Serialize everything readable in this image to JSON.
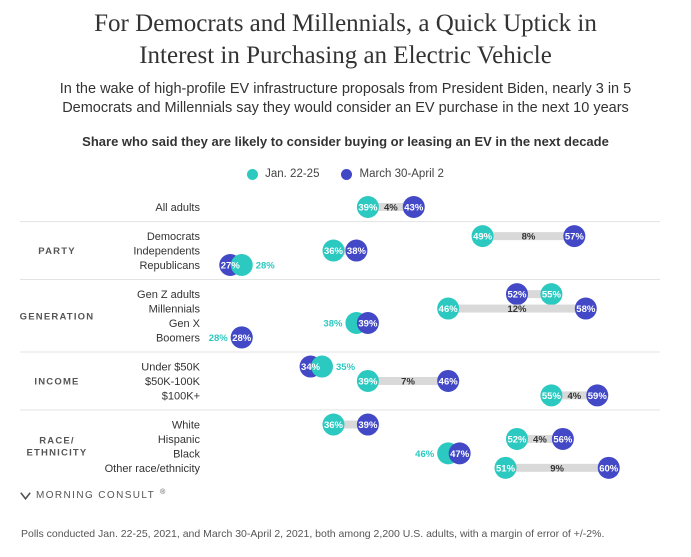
{
  "chart_data": {
    "type": "dumbbell",
    "title_lines": [
      "For Democrats and Millennials, a Quick Uptick in",
      "Interest in Purchasing an Electric Vehicle"
    ],
    "subtitle_lines": [
      "In the wake of high-profile EV infrastructure proposals from President Biden, nearly 3 in 5",
      "Democrats and Millennials say they would consider an EV purchase in the next 10 years"
    ],
    "chart_heading": "Share who said they are likely to consider buying or leasing an EV in the next decade",
    "legend": [
      {
        "name": "Jan. 22-25",
        "color": "#2cc9c0"
      },
      {
        "name": "March 30-April 2",
        "color": "#4248c6"
      }
    ],
    "x_range": [
      25,
      61
    ],
    "groups": [
      {
        "label": "",
        "rows": [
          {
            "label": "All adults",
            "jan": 39,
            "mar": 43,
            "jan_label": "39%",
            "mar_label": "43%",
            "diff_label": "4%"
          }
        ]
      },
      {
        "label": "PARTY",
        "rows": [
          {
            "label": "Democrats",
            "jan": 49,
            "mar": 57,
            "jan_label": "49%",
            "mar_label": "57%",
            "diff_label": "8%"
          },
          {
            "label": "Independents",
            "jan": 36,
            "mar": 38,
            "jan_label": "36%",
            "mar_label": "38%",
            "diff_label": ""
          },
          {
            "label": "Republicans",
            "jan": 28,
            "mar": 27,
            "jan_label": "28%",
            "mar_label": "27%",
            "diff_label": ""
          }
        ]
      },
      {
        "label": "GENERATION",
        "rows": [
          {
            "label": "Gen Z adults",
            "jan": 55,
            "mar": 52,
            "jan_label": "55%",
            "mar_label": "52%",
            "diff_label": ""
          },
          {
            "label": "Millennials",
            "jan": 46,
            "mar": 58,
            "jan_label": "46%",
            "mar_label": "58%",
            "diff_label": "12%"
          },
          {
            "label": "Gen X",
            "jan": 38,
            "mar": 39,
            "jan_label": "38%",
            "mar_label": "39%",
            "diff_label": ""
          },
          {
            "label": "Boomers",
            "jan": 28,
            "mar": 28,
            "jan_label": "28%",
            "mar_label": "28%",
            "diff_label": ""
          }
        ]
      },
      {
        "label": "INCOME",
        "rows": [
          {
            "label": "Under $50K",
            "jan": 35,
            "mar": 34,
            "jan_label": "35%",
            "mar_label": "34%",
            "diff_label": ""
          },
          {
            "label": "$50K-100K",
            "jan": 39,
            "mar": 46,
            "jan_label": "39%",
            "mar_label": "46%",
            "diff_label": "7%"
          },
          {
            "label": "$100K+",
            "jan": 55,
            "mar": 59,
            "jan_label": "55%",
            "mar_label": "59%",
            "diff_label": "4%"
          }
        ]
      },
      {
        "label": "RACE/\nETHNICITY",
        "rows": [
          {
            "label": "White",
            "jan": 36,
            "mar": 39,
            "jan_label": "36%",
            "mar_label": "39%",
            "diff_label": ""
          },
          {
            "label": "Hispanic",
            "jan": 52,
            "mar": 56,
            "jan_label": "52%",
            "mar_label": "56%",
            "diff_label": "4%"
          },
          {
            "label": "Black",
            "jan": 46,
            "mar": 47,
            "jan_label": "46%",
            "mar_label": "47%",
            "diff_label": ""
          },
          {
            "label": "Other race/ethnicity",
            "jan": 51,
            "mar": 60,
            "jan_label": "51%",
            "mar_label": "60%",
            "diff_label": "9%"
          }
        ]
      }
    ]
  },
  "brand": {
    "name": "MORNING CONSULT",
    "mark": "®"
  },
  "footnote": "Polls conducted Jan. 22-25, 2021, and March 30-April 2, 2021, both among 2,200 U.S. adults, with a margin of error of +/-2%."
}
